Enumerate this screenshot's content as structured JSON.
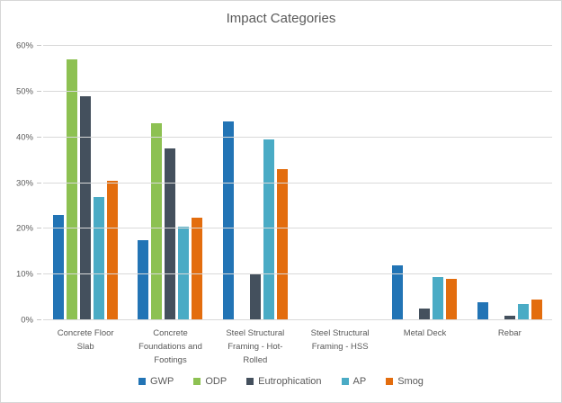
{
  "window": {
    "background": "#ffffff",
    "border_color": "#d7d7d7",
    "gridline_color": "#d9d9d9",
    "axis_text_color": "#595959",
    "title_color": "#595959"
  },
  "chart_data": {
    "type": "bar",
    "title": "Impact Categories",
    "categories": [
      "Concrete Floor Slab",
      "Concrete Foundations and Footings",
      "Steel Structural Framing - Hot-Rolled",
      "Steel Structural Framing - HSS",
      "Metal Deck",
      "Rebar"
    ],
    "series": [
      {
        "name": "GWP",
        "color": "#2274b5",
        "values": [
          23,
          17.5,
          43.5,
          0,
          12,
          4
        ]
      },
      {
        "name": "ODP",
        "color": "#8dc152",
        "values": [
          57,
          43,
          0,
          0,
          0,
          0
        ]
      },
      {
        "name": "Eutrophication",
        "color": "#44505d",
        "values": [
          49,
          37.5,
          10,
          0,
          2.5,
          1
        ]
      },
      {
        "name": "AP",
        "color": "#4aabc5",
        "values": [
          27,
          20.5,
          39.5,
          0,
          9.5,
          3.5
        ]
      },
      {
        "name": "Smog",
        "color": "#e36d0e",
        "values": [
          30.5,
          22.5,
          33,
          0,
          9,
          4.5
        ]
      }
    ],
    "ylim": [
      0,
      60
    ],
    "y_tick_step": 10,
    "y_tick_labels": [
      "0%",
      "10%",
      "20%",
      "30%",
      "40%",
      "50%",
      "60%"
    ],
    "grid": true,
    "legend_position": "bottom",
    "xlabel": "",
    "ylabel": ""
  }
}
